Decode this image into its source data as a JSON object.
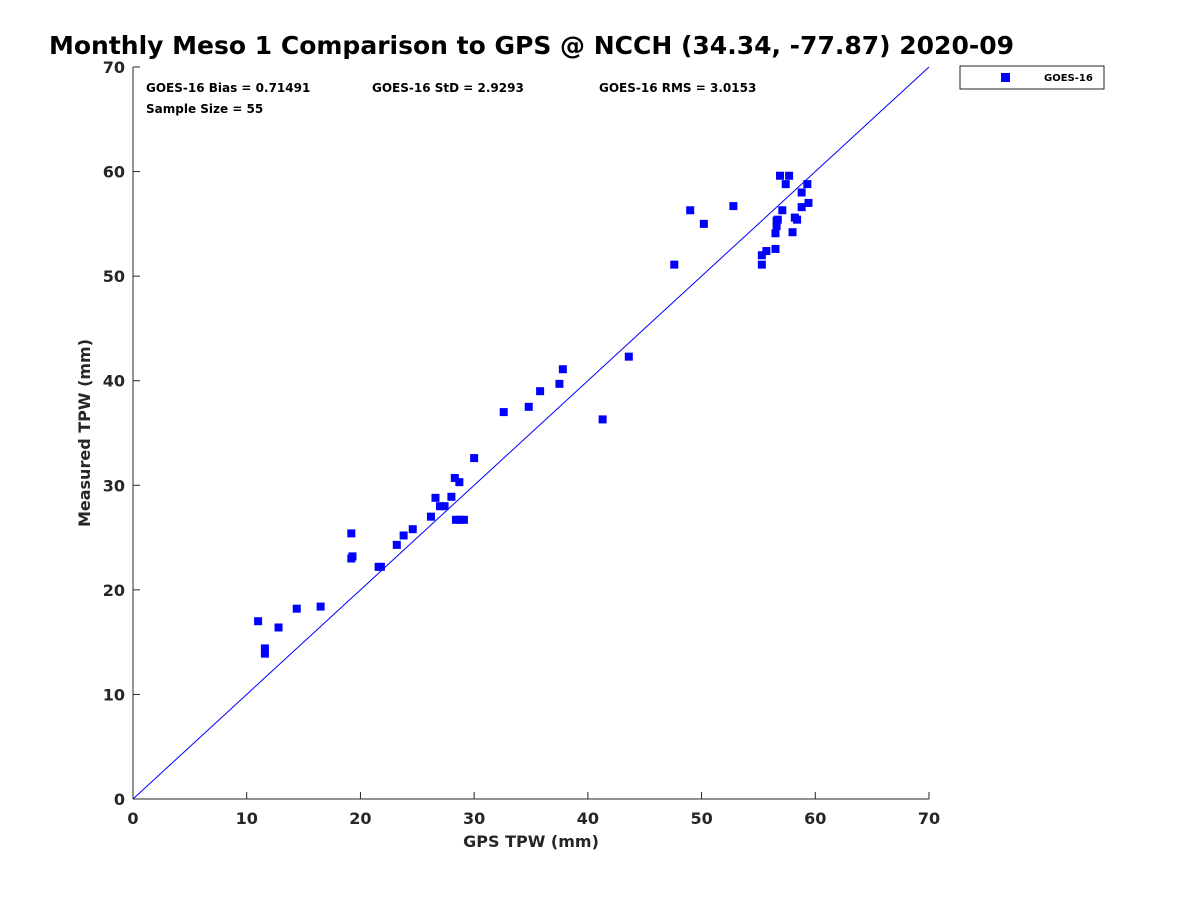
{
  "chart_data": {
    "type": "scatter",
    "title": "Monthly Meso 1 Comparison to GPS @ NCCH (34.34, -77.87) 2020-09",
    "xlabel": "GPS TPW (mm)",
    "ylabel": "Measured TPW (mm)",
    "xlim": [
      0,
      70
    ],
    "ylim": [
      0,
      70
    ],
    "xticks": [
      0,
      10,
      20,
      30,
      40,
      50,
      60,
      70
    ],
    "yticks": [
      0,
      10,
      20,
      30,
      40,
      50,
      60,
      70
    ],
    "grid": false,
    "legend_position": "outside-top-right",
    "reference_line": {
      "type": "one-to-one",
      "color": "#0000ff"
    },
    "annotations": {
      "bias": "GOES-16 Bias = 0.71491",
      "std": "GOES-16 StD = 2.9293",
      "rms": "GOES-16 RMS = 3.0153",
      "sample": "Sample Size = 55"
    },
    "series": [
      {
        "name": "GOES-16",
        "color": "#0000ff",
        "marker": "square",
        "x": [
          11.0,
          11.6,
          11.6,
          12.8,
          14.4,
          16.5,
          19.2,
          19.2,
          19.3,
          21.6,
          21.8,
          23.2,
          23.8,
          24.6,
          26.2,
          26.6,
          27.0,
          27.4,
          28.0,
          28.3,
          28.4,
          28.7,
          28.7,
          29.1,
          30.0,
          32.6,
          34.8,
          35.8,
          37.5,
          37.8,
          41.3,
          43.6,
          47.6,
          49.0,
          50.2,
          52.8,
          55.3,
          55.3,
          55.7,
          56.5,
          56.5,
          56.6,
          56.6,
          56.7,
          56.9,
          57.1,
          57.4,
          57.7,
          58.0,
          58.2,
          58.4,
          58.8,
          58.8,
          59.3,
          59.4
        ],
        "y": [
          17.0,
          14.4,
          13.9,
          16.4,
          18.2,
          18.4,
          25.4,
          23.0,
          23.2,
          22.2,
          22.2,
          24.3,
          25.2,
          25.8,
          27.0,
          28.8,
          28.0,
          28.0,
          28.9,
          30.7,
          26.7,
          30.3,
          26.7,
          26.7,
          32.6,
          37.0,
          37.5,
          39.0,
          39.7,
          41.1,
          36.3,
          42.3,
          51.1,
          56.3,
          55.0,
          56.7,
          52.0,
          51.1,
          52.4,
          52.6,
          54.1,
          54.8,
          55.3,
          55.4,
          59.6,
          56.3,
          58.8,
          59.6,
          54.2,
          55.6,
          55.4,
          58.0,
          56.6,
          58.8,
          57.0
        ]
      }
    ]
  }
}
